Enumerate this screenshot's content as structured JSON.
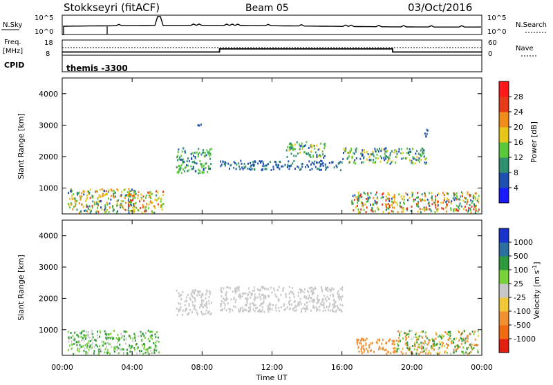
{
  "header": {
    "station": "Stokkseyri (fitACF)",
    "beam": "Beam 05",
    "date": "03/Oct/2016"
  },
  "noise_panel": {
    "left_label": "N.Sky",
    "right_label": "N.Search",
    "left_ticks": [
      "10^5",
      "10^0"
    ],
    "right_ticks": [
      "10^5",
      "10^0"
    ]
  },
  "freq_panel": {
    "freq_label": "Freq.",
    "freq_unit": "[MHz]",
    "nave_label": "Nave",
    "left_ticks": [
      "18",
      "8"
    ],
    "right_ticks": [
      "60",
      "0"
    ],
    "freq_steps": [
      {
        "from_h": 0.0,
        "to_h": 9.0,
        "mhz": 10.1
      },
      {
        "from_h": 9.0,
        "to_h": 18.9,
        "mhz": 12.2
      },
      {
        "from_h": 18.9,
        "to_h": 24.0,
        "mhz": 10.1
      }
    ],
    "nave_level": 14
  },
  "cpid": {
    "label": "CPID",
    "value": "themis -3300"
  },
  "time_axis": {
    "ticks": [
      "00:00",
      "04:00",
      "08:00",
      "12:00",
      "16:00",
      "20:00",
      "00:00"
    ],
    "label": "Time UT",
    "range_h": [
      0,
      24
    ]
  },
  "range_axis": {
    "label": "Slant Range [km]",
    "ticks": [
      "1000",
      "2000",
      "3000",
      "4000"
    ],
    "range_km": [
      180,
      4500
    ]
  },
  "power_scale": {
    "label": "Power [dB]",
    "ticks": [
      "4",
      "8",
      "12",
      "16",
      "20",
      "24",
      "28"
    ],
    "colors": [
      "#1a1aff",
      "#1f4fb0",
      "#2f8f6f",
      "#5ac83a",
      "#e6c619",
      "#f08c1a",
      "#e63a1a",
      "#ff1a1a"
    ]
  },
  "velocity_scale": {
    "label": "Velocity [m s",
    "label_sup": "-1",
    "label_end": "]",
    "ticks": [
      "1000",
      "500",
      "100",
      "25",
      "-25",
      "-100",
      "-500",
      "-1000"
    ],
    "colors": [
      "#1a33cc",
      "#2a70a0",
      "#2e9a3e",
      "#7ad23a",
      "#c8c8c8",
      "#f0c83a",
      "#f09030",
      "#f06a10",
      "#e02010"
    ]
  },
  "chart_data": {
    "type": "heatmap",
    "x_unit": "hours UT",
    "y_unit": "km",
    "power_features": [
      {
        "t": [
          0.3,
          4.2
        ],
        "r": [
          250,
          1000
        ],
        "power_db": [
          6,
          26
        ],
        "desc_level": "mid"
      },
      {
        "t": [
          3.7,
          5.8
        ],
        "r": [
          250,
          950
        ],
        "power_db": [
          8,
          28
        ],
        "desc_level": "high"
      },
      {
        "t": [
          6.5,
          8.5
        ],
        "r": [
          1500,
          2300
        ],
        "power_db": [
          6,
          16
        ],
        "desc_level": "low"
      },
      {
        "t": [
          7.7,
          8.0
        ],
        "r": [
          2950,
          3100
        ],
        "power_db": [
          4,
          8
        ],
        "desc_level": "low"
      },
      {
        "t": [
          9.0,
          16.0
        ],
        "r": [
          1600,
          1900
        ],
        "power_db": [
          4,
          10
        ],
        "desc_level": "low"
      },
      {
        "t": [
          12.8,
          15.0
        ],
        "r": [
          2000,
          2500
        ],
        "power_db": [
          6,
          18
        ],
        "desc_level": "low"
      },
      {
        "t": [
          16.0,
          20.8
        ],
        "r": [
          1800,
          2300
        ],
        "power_db": [
          4,
          18
        ],
        "desc_level": "low"
      },
      {
        "t": [
          16.5,
          23.8
        ],
        "r": [
          250,
          900
        ],
        "power_db": [
          6,
          28
        ],
        "desc_level": "high"
      },
      {
        "t": [
          20.6,
          20.9
        ],
        "r": [
          2600,
          2900
        ],
        "power_db": [
          4,
          8
        ],
        "desc_level": "low"
      }
    ],
    "velocity_features": [
      {
        "t": [
          0.3,
          5.5
        ],
        "r": [
          250,
          1000
        ],
        "velocity_ms": [
          -25,
          200
        ]
      },
      {
        "t": [
          6.5,
          8.5
        ],
        "r": [
          1500,
          2300
        ],
        "velocity_ms": [
          -25,
          25
        ]
      },
      {
        "t": [
          9.0,
          16.0
        ],
        "r": [
          1600,
          2400
        ],
        "velocity_ms": [
          -25,
          25
        ]
      },
      {
        "t": [
          16.8,
          19.0
        ],
        "r": [
          250,
          750
        ],
        "velocity_ms": [
          -500,
          -100
        ]
      },
      {
        "t": [
          19.0,
          23.8
        ],
        "r": [
          250,
          1000
        ],
        "velocity_ms": [
          -300,
          300
        ]
      }
    ]
  }
}
